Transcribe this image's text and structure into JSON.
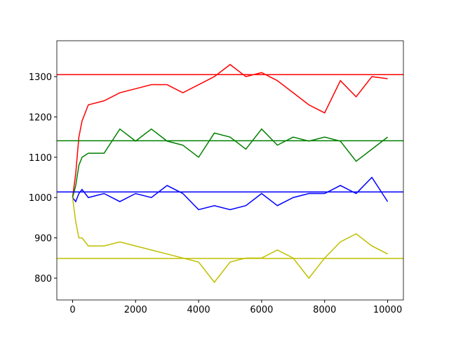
{
  "chart_data": {
    "type": "line",
    "x": [
      0,
      100,
      200,
      300,
      500,
      1000,
      1500,
      2000,
      2500,
      3000,
      3500,
      4000,
      4500,
      5000,
      5500,
      6000,
      6500,
      7000,
      7500,
      8000,
      8500,
      9000,
      9500,
      10000
    ],
    "series": [
      {
        "color": "#ff0000",
        "values": [
          1000,
          1060,
          1150,
          1190,
          1230,
          1240,
          1260,
          1270,
          1280,
          1280,
          1260,
          1280,
          1300,
          1330,
          1300,
          1310,
          1290,
          1260,
          1230,
          1210,
          1290,
          1250,
          1300,
          1295
        ]
      },
      {
        "color": "#008000",
        "values": [
          1000,
          1030,
          1080,
          1100,
          1110,
          1110,
          1170,
          1140,
          1170,
          1140,
          1130,
          1100,
          1160,
          1150,
          1120,
          1170,
          1130,
          1150,
          1140,
          1150,
          1140,
          1090,
          1120,
          1150
        ]
      },
      {
        "color": "#0000ff",
        "values": [
          1000,
          990,
          1010,
          1020,
          1000,
          1010,
          990,
          1010,
          1000,
          1030,
          1010,
          970,
          980,
          970,
          980,
          1010,
          980,
          1000,
          1010,
          1010,
          1030,
          1010,
          1050,
          990
        ]
      },
      {
        "color": "#bfbf00",
        "values": [
          1000,
          940,
          900,
          900,
          880,
          880,
          890,
          880,
          870,
          860,
          850,
          840,
          790,
          840,
          850,
          850,
          870,
          850,
          800,
          850,
          890,
          910,
          880,
          860
        ]
      }
    ],
    "hlines": [
      {
        "value": 1305,
        "color": "#ff0000"
      },
      {
        "value": 1141,
        "color": "#008000"
      },
      {
        "value": 1014,
        "color": "#0000ff"
      },
      {
        "value": 849,
        "color": "#bfbf00"
      }
    ],
    "xlim": [
      -500,
      10500
    ],
    "ylim": [
      746,
      1389
    ],
    "xticks": [
      0,
      2000,
      4000,
      6000,
      8000,
      10000
    ],
    "yticks": [
      800,
      900,
      1000,
      1100,
      1200,
      1300
    ]
  }
}
